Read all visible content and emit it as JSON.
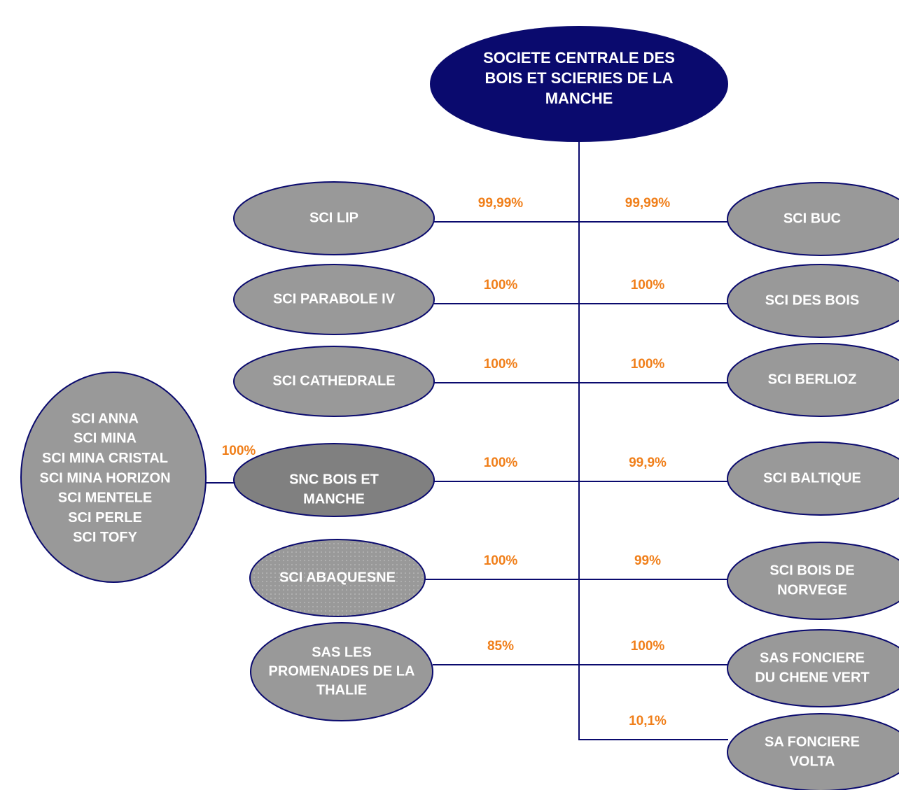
{
  "root": {
    "lines": [
      "SOCIETE CENTRALE DES",
      "BOIS ET SCIERIES DE LA",
      "MANCHE"
    ]
  },
  "rows": [
    {
      "left": {
        "lines": [
          "SCI LIP"
        ],
        "pct": "99,99%"
      },
      "right": {
        "lines": [
          "SCI BUC"
        ],
        "pct": "99,99%"
      }
    },
    {
      "left": {
        "lines": [
          "SCI PARABOLE IV"
        ],
        "pct": "100%"
      },
      "right": {
        "lines": [
          "SCI DES BOIS"
        ],
        "pct": "100%"
      }
    },
    {
      "left": {
        "lines": [
          "SCI CATHEDRALE"
        ],
        "pct": "100%"
      },
      "right": {
        "lines": [
          "SCI BERLIOZ"
        ],
        "pct": "100%"
      }
    },
    {
      "left": {
        "lines": [
          "SNC BOIS ET",
          "MANCHE"
        ],
        "pct": "100%"
      },
      "right": {
        "lines": [
          "SCI BALTIQUE"
        ],
        "pct": "99,9%"
      }
    },
    {
      "left": {
        "lines": [
          "SCI ABAQUESNE"
        ],
        "pct": "100%"
      },
      "right": {
        "lines": [
          "SCI BOIS DE",
          "NORVEGE"
        ],
        "pct": "99%"
      }
    },
    {
      "left": {
        "lines": [
          "SAS LES",
          "PROMENADES DE LA",
          "THALIE"
        ],
        "pct": "85%"
      },
      "right": {
        "lines": [
          "SAS FONCIERE",
          "DU CHENE VERT"
        ],
        "pct": "100%"
      }
    },
    {
      "right": {
        "lines": [
          "SA FONCIERE",
          "VOLTA"
        ],
        "pct": "10,1%"
      }
    }
  ],
  "group": {
    "lines": [
      "SCI ANNA",
      "SCI MINA",
      "SCI MINA CRISTAL",
      "SCI MINA HORIZON",
      "SCI MENTELE",
      "SCI PERLE",
      "SCI TOFY"
    ],
    "pct": "100%"
  }
}
